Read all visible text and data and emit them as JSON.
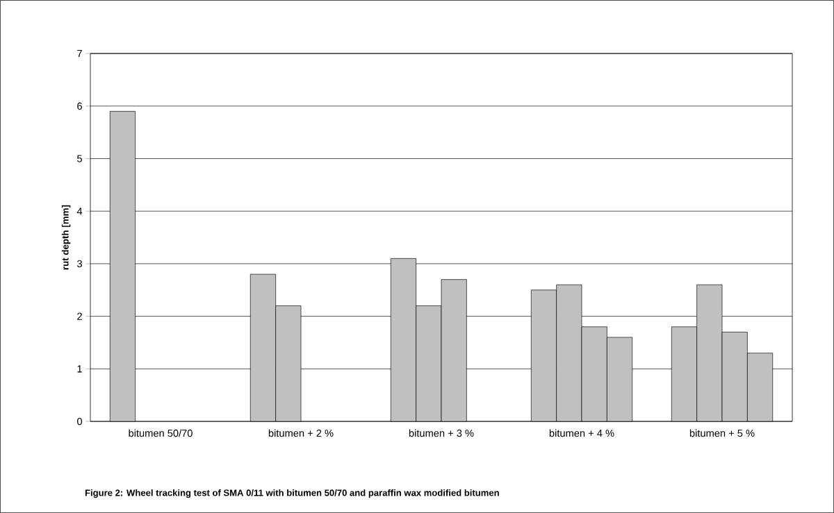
{
  "chart_data": {
    "type": "bar",
    "ylabel": "rut depth [mm]",
    "categories": [
      "bitumen 50/70",
      "bitumen + 2 %",
      "bitumen + 3 %",
      "bitumen + 4 %",
      "bitumen + 5 %"
    ],
    "series": [
      {
        "color": "#c0c0c0",
        "values": [
          5.9,
          2.8,
          3.1,
          2.5,
          1.8
        ]
      },
      {
        "color": "#c0c0c0",
        "values": [
          null,
          2.2,
          2.2,
          2.6,
          2.6
        ]
      },
      {
        "color": "#c0c0c0",
        "values": [
          null,
          null,
          2.7,
          1.8,
          1.7
        ]
      },
      {
        "color": "#c0c0c0",
        "values": [
          null,
          null,
          null,
          1.6,
          1.3
        ]
      }
    ],
    "ylim": [
      0,
      7
    ],
    "yticks": [
      0,
      1,
      2,
      3,
      4,
      5,
      6,
      7
    ],
    "grid": "y",
    "annotations": [
      "Figure 2:  Wheel tracking test of SMA 0/11 with bitumen 50/70 and paraffin wax modified bitumen"
    ]
  }
}
